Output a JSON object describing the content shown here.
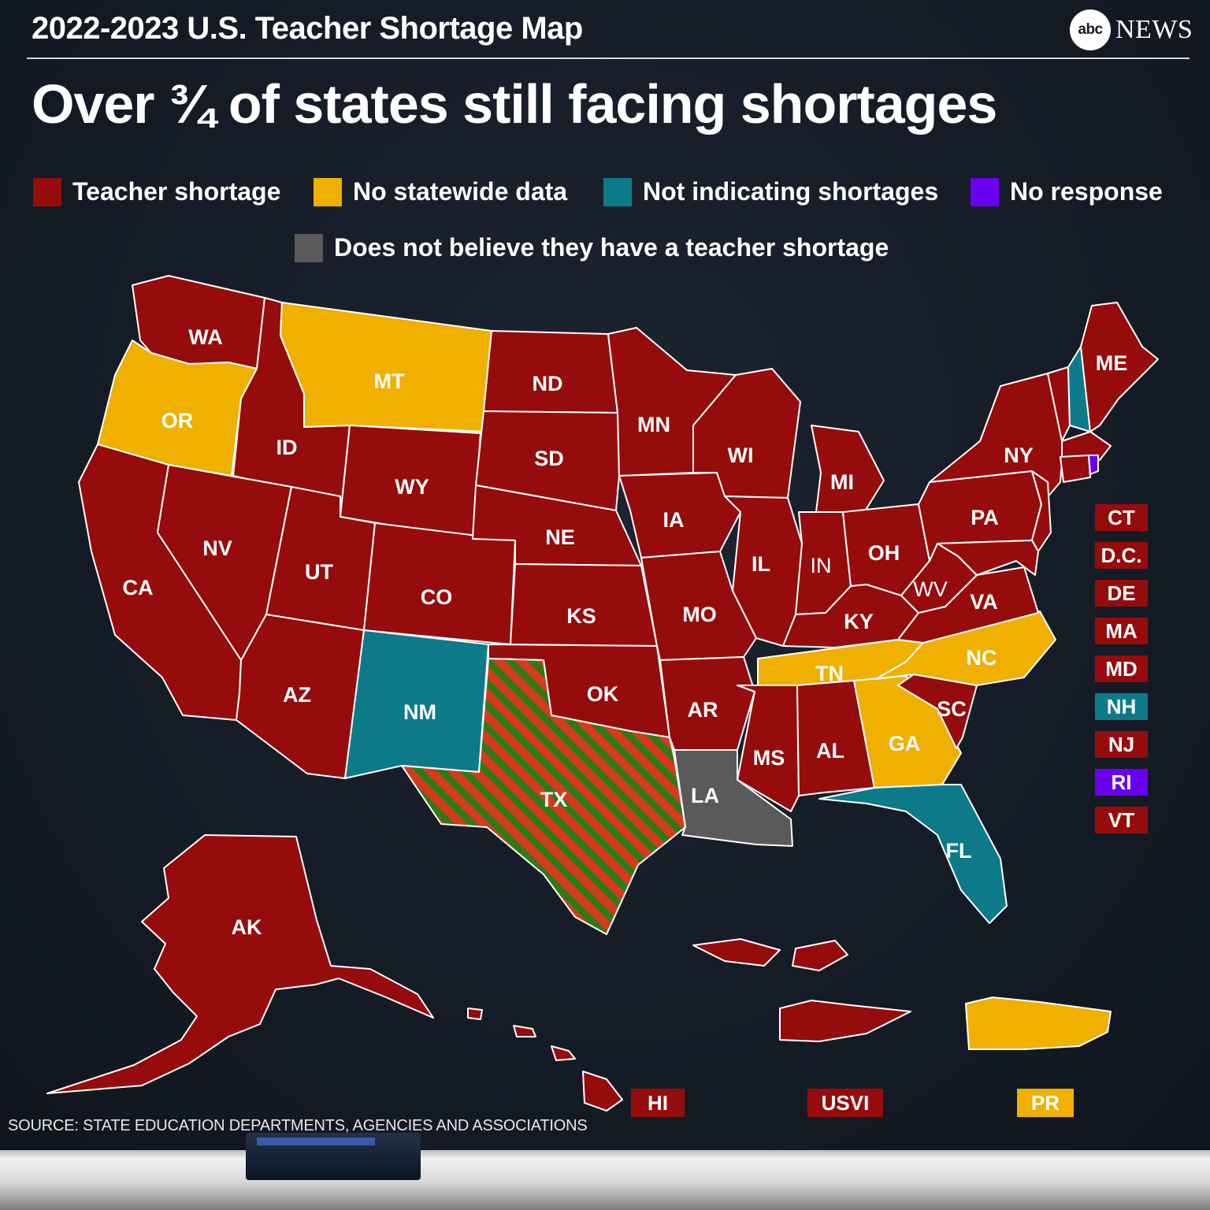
{
  "header": {
    "title": "2022-2023 U.S. Teacher Shortage Map",
    "logo_mark": "abc",
    "logo_word": "NEWS"
  },
  "headline": "Over ¾ of states still facing shortages",
  "colors": {
    "shortage": "#960c0c",
    "no_data": "#f0b000",
    "not_indicating": "#0d7a8a",
    "no_response": "#6a00f0",
    "no_belief": "#5a5a5a",
    "texas_stripe_a": "#d63a1c",
    "texas_stripe_b": "#2e7a18"
  },
  "legend": [
    {
      "label": "Teacher shortage",
      "color": "#960c0c"
    },
    {
      "label": "No statewide data",
      "color": "#f0b000"
    },
    {
      "label": "Not indicating shortages",
      "color": "#0d7a8a"
    },
    {
      "label": "No response",
      "color": "#6a00f0"
    },
    {
      "label": "Does not believe they have a teacher shortage",
      "color": "#5a5a5a"
    }
  ],
  "states": [
    {
      "abbr": "WA",
      "status": "Teacher shortage"
    },
    {
      "abbr": "OR",
      "status": "No statewide data"
    },
    {
      "abbr": "CA",
      "status": "Teacher shortage"
    },
    {
      "abbr": "ID",
      "status": "Teacher shortage"
    },
    {
      "abbr": "NV",
      "status": "Teacher shortage"
    },
    {
      "abbr": "MT",
      "status": "No statewide data"
    },
    {
      "abbr": "WY",
      "status": "Teacher shortage"
    },
    {
      "abbr": "UT",
      "status": "Teacher shortage"
    },
    {
      "abbr": "AZ",
      "status": "Teacher shortage"
    },
    {
      "abbr": "CO",
      "status": "Teacher shortage"
    },
    {
      "abbr": "NM",
      "status": "Not indicating shortages"
    },
    {
      "abbr": "ND",
      "status": "Teacher shortage"
    },
    {
      "abbr": "SD",
      "status": "Teacher shortage"
    },
    {
      "abbr": "NE",
      "status": "Teacher shortage"
    },
    {
      "abbr": "KS",
      "status": "Teacher shortage"
    },
    {
      "abbr": "OK",
      "status": "Teacher shortage"
    },
    {
      "abbr": "TX",
      "status": "Mixed (striped)"
    },
    {
      "abbr": "MN",
      "status": "Teacher shortage"
    },
    {
      "abbr": "IA",
      "status": "Teacher shortage"
    },
    {
      "abbr": "MO",
      "status": "Teacher shortage"
    },
    {
      "abbr": "AR",
      "status": "Teacher shortage"
    },
    {
      "abbr": "LA",
      "status": "Does not believe they have a teacher shortage"
    },
    {
      "abbr": "WI",
      "status": "Teacher shortage"
    },
    {
      "abbr": "IL",
      "status": "Teacher shortage"
    },
    {
      "abbr": "MI",
      "status": "Teacher shortage"
    },
    {
      "abbr": "IN",
      "status": "Teacher shortage"
    },
    {
      "abbr": "OH",
      "status": "Teacher shortage"
    },
    {
      "abbr": "KY",
      "status": "Teacher shortage"
    },
    {
      "abbr": "TN",
      "status": "No statewide data"
    },
    {
      "abbr": "MS",
      "status": "Teacher shortage"
    },
    {
      "abbr": "AL",
      "status": "Teacher shortage"
    },
    {
      "abbr": "GA",
      "status": "No statewide data"
    },
    {
      "abbr": "FL",
      "status": "Not indicating shortages"
    },
    {
      "abbr": "SC",
      "status": "Teacher shortage"
    },
    {
      "abbr": "NC",
      "status": "No statewide data"
    },
    {
      "abbr": "VA",
      "status": "Teacher shortage"
    },
    {
      "abbr": "WV",
      "status": "Teacher shortage"
    },
    {
      "abbr": "PA",
      "status": "Teacher shortage"
    },
    {
      "abbr": "NY",
      "status": "Teacher shortage"
    },
    {
      "abbr": "ME",
      "status": "Teacher shortage"
    },
    {
      "abbr": "AK",
      "status": "Teacher shortage"
    }
  ],
  "small_states": [
    {
      "abbr": "CT",
      "color": "#960c0c"
    },
    {
      "abbr": "D.C.",
      "color": "#960c0c"
    },
    {
      "abbr": "DE",
      "color": "#960c0c"
    },
    {
      "abbr": "MA",
      "color": "#960c0c"
    },
    {
      "abbr": "MD",
      "color": "#960c0c"
    },
    {
      "abbr": "NH",
      "color": "#0d7a8a"
    },
    {
      "abbr": "NJ",
      "color": "#960c0c"
    },
    {
      "abbr": "RI",
      "color": "#6a00f0"
    },
    {
      "abbr": "VT",
      "color": "#960c0c"
    }
  ],
  "territories": [
    {
      "abbr": "HI",
      "color": "#960c0c"
    },
    {
      "abbr": "USVI",
      "color": "#960c0c"
    },
    {
      "abbr": "PR",
      "color": "#f0b000"
    }
  ],
  "source": "SOURCE: STATE EDUCATION DEPARTMENTS, AGENCIES AND ASSOCIATIONS"
}
